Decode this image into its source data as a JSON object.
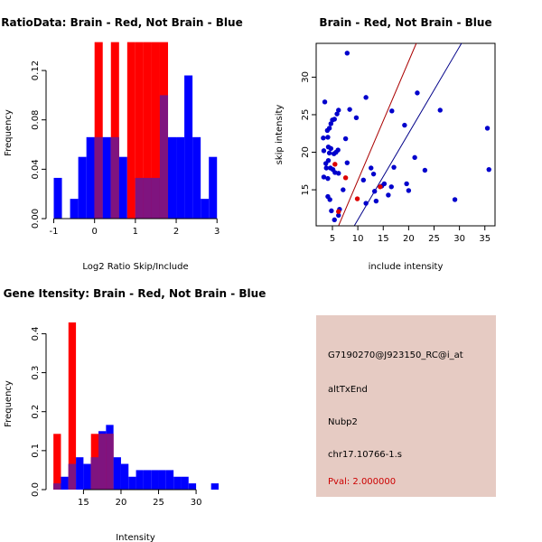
{
  "chart_data": [
    {
      "type": "bar",
      "title": "RatioData: Brain - Red, Not Brain - Blue",
      "xlabel": "Log2 Ratio Skip/Include",
      "ylabel": "Frequency",
      "xlim": [
        -1.1,
        3.15
      ],
      "ylim": [
        0,
        0.142
      ],
      "xticks": [
        -1,
        0,
        1,
        2,
        3
      ],
      "xtick_labels": [
        "-1",
        "0",
        "1",
        "2",
        "3"
      ],
      "yticks": [
        0,
        0.04,
        0.08,
        0.12
      ],
      "ytick_labels": [
        "0.00",
        "0.04",
        "0.08",
        "0.12"
      ],
      "bin_edges": [
        -1.0,
        -0.8,
        -0.6,
        -0.4,
        -0.2,
        0.0,
        0.2,
        0.4,
        0.6,
        0.8,
        1.0,
        1.2,
        1.4,
        1.6,
        1.8,
        2.0,
        2.2,
        2.4,
        2.6,
        2.8,
        3.0
      ],
      "series": [
        {
          "name": "Not Brain",
          "color": "#0000ff",
          "values": [
            0.033,
            0,
            0.016,
            0.05,
            0.066,
            0.066,
            0.066,
            0.066,
            0.05,
            0,
            0.033,
            0.033,
            0.033,
            0.1,
            0.066,
            0.066,
            0.116,
            0.066,
            0.016,
            0.05
          ]
        },
        {
          "name": "Brain",
          "color": "#ff0000",
          "values": [
            0,
            0,
            0,
            0,
            0,
            0.143,
            0,
            0.143,
            0,
            0.143,
            0.143,
            0.143,
            0.143,
            0.143,
            0,
            0,
            0,
            0,
            0,
            0
          ]
        }
      ]
    },
    {
      "type": "scatter",
      "title": "Brain - Red, Not Brain - Blue",
      "xlabel": "include intensity",
      "ylabel": "skip intensity",
      "xlim": [
        1.8,
        37
      ],
      "ylim": [
        10.2,
        34.5
      ],
      "xticks": [
        5,
        10,
        15,
        20,
        25,
        30,
        35
      ],
      "xtick_labels": [
        "5",
        "10",
        "15",
        "20",
        "25",
        "30",
        "35"
      ],
      "yticks": [
        15,
        20,
        25,
        30
      ],
      "ytick_labels": [
        "15",
        "20",
        "25",
        "30"
      ],
      "lines": [
        {
          "name": "red-fit",
          "color": "#aa0000",
          "points": [
            [
              6.2,
              10.2
            ],
            [
              21.5,
              34.5
            ]
          ]
        },
        {
          "name": "blue-fit",
          "color": "#000088",
          "points": [
            [
              9.3,
              10.2
            ],
            [
              30.4,
              34.5
            ]
          ]
        }
      ],
      "series": [
        {
          "name": "Not Brain",
          "color": "#0000cc",
          "points": [
            [
              3.2,
              21.9
            ],
            [
              3.5,
              26.7
            ],
            [
              3.3,
              20.2
            ],
            [
              3.7,
              18.5
            ],
            [
              4.0,
              22.9
            ],
            [
              4.2,
              20.7
            ],
            [
              4.4,
              19.9
            ],
            [
              4.1,
              22.0
            ],
            [
              4.4,
              23.2
            ],
            [
              4.7,
              23.8
            ],
            [
              5.0,
              24.3
            ],
            [
              5.4,
              24.4
            ],
            [
              5.9,
              25.1
            ],
            [
              6.2,
              25.6
            ],
            [
              3.8,
              17.9
            ],
            [
              4.2,
              18.9
            ],
            [
              4.7,
              20.5
            ],
            [
              5.3,
              19.8
            ],
            [
              5.7,
              20.0
            ],
            [
              6.1,
              20.3
            ],
            [
              4.6,
              17.9
            ],
            [
              5.1,
              17.7
            ],
            [
              5.5,
              17.3
            ],
            [
              6.2,
              17.2
            ],
            [
              3.3,
              16.7
            ],
            [
              4.1,
              16.5
            ],
            [
              4.1,
              14.1
            ],
            [
              4.5,
              13.7
            ],
            [
              4.8,
              12.2
            ],
            [
              5.4,
              11.0
            ],
            [
              6.2,
              11.6
            ],
            [
              6.4,
              12.4
            ],
            [
              7.1,
              15.0
            ],
            [
              7.9,
              33.2
            ],
            [
              7.6,
              21.8
            ],
            [
              7.9,
              18.6
            ],
            [
              8.4,
              25.7
            ],
            [
              9.7,
              24.6
            ],
            [
              11.6,
              27.3
            ],
            [
              11.1,
              16.3
            ],
            [
              11.6,
              13.2
            ],
            [
              12.6,
              17.9
            ],
            [
              13.1,
              17.1
            ],
            [
              13.3,
              14.8
            ],
            [
              13.6,
              13.5
            ],
            [
              14.7,
              15.5
            ],
            [
              15.2,
              15.8
            ],
            [
              16.0,
              14.3
            ],
            [
              16.6,
              15.4
            ],
            [
              16.7,
              25.5
            ],
            [
              17.1,
              18.0
            ],
            [
              19.2,
              23.6
            ],
            [
              19.6,
              15.8
            ],
            [
              20.0,
              14.9
            ],
            [
              21.2,
              19.3
            ],
            [
              21.7,
              27.9
            ],
            [
              23.2,
              17.6
            ],
            [
              26.2,
              25.6
            ],
            [
              29.1,
              13.7
            ],
            [
              35.5,
              23.2
            ],
            [
              35.8,
              17.7
            ]
          ]
        },
        {
          "name": "Brain",
          "color": "#dd0000",
          "points": [
            [
              5.5,
              18.4
            ],
            [
              6.2,
              12.1
            ],
            [
              7.6,
              16.6
            ],
            [
              9.9,
              13.8
            ],
            [
              14.4,
              15.4
            ]
          ]
        }
      ]
    },
    {
      "type": "bar",
      "title": "Gene Itensity: Brain - Red, Not Brain - Blue",
      "xlabel": "Intensity",
      "ylabel": "Frequency",
      "xlim": [
        10.5,
        33.6
      ],
      "ylim": [
        0,
        0.445
      ],
      "xticks": [
        15,
        20,
        25,
        30
      ],
      "xtick_labels": [
        "15",
        "20",
        "25",
        "30"
      ],
      "yticks": [
        0,
        0.1,
        0.2,
        0.3,
        0.4
      ],
      "ytick_labels": [
        "0.0",
        "0.1",
        "0.2",
        "0.3",
        "0.4"
      ],
      "bin_edges": [
        11,
        12,
        13,
        14,
        15,
        16,
        17,
        18,
        19,
        20,
        21,
        22,
        23,
        24,
        25,
        26,
        27,
        28,
        29,
        30,
        31,
        32,
        33
      ],
      "series": [
        {
          "name": "Not Brain",
          "color": "#0000ff",
          "values": [
            0.016,
            0.033,
            0.066,
            0.083,
            0.066,
            0.083,
            0.15,
            0.166,
            0.083,
            0.066,
            0.033,
            0.05,
            0.05,
            0.05,
            0.05,
            0.05,
            0.033,
            0.033,
            0.016,
            0,
            0,
            0.016
          ]
        },
        {
          "name": "Brain",
          "color": "#ff0000",
          "values": [
            0.143,
            0,
            0.429,
            0,
            0,
            0.143,
            0.143,
            0.143,
            0,
            0,
            0,
            0,
            0,
            0,
            0,
            0,
            0,
            0,
            0,
            0,
            0,
            0
          ]
        }
      ]
    }
  ],
  "info_panel": {
    "probe_id": "G7190270@J923150_RC@i_at",
    "event_type": "altTxEnd",
    "gene": "Nubp2",
    "location": "chr17.10766-1.s",
    "pval": "Pval: 2.000000",
    "background_color": "#e6cbc3",
    "pval_color": "#cc0000"
  },
  "colors": {
    "not_brain": "#0000ff",
    "brain": "#ff0000",
    "overlap": "#7f147f"
  }
}
